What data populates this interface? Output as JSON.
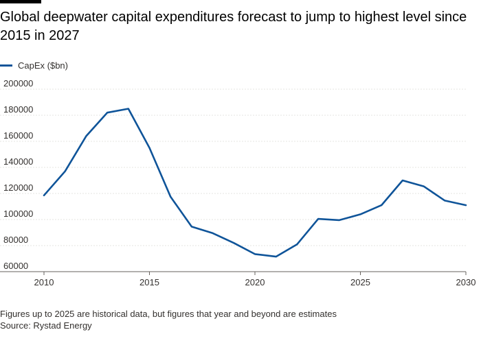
{
  "header": {
    "title": "Global deepwater capital expenditures forecast to jump to highest level since 2015 in 2027"
  },
  "footer": {
    "note": "Figures up to 2025 are historical data, but figures that year and beyond are estimates",
    "source": "Source: Rystad Energy"
  },
  "colors": {
    "series": "#0f5499",
    "grid": "#e6e4e1",
    "axis": "#66605c",
    "text": "#33302e"
  },
  "chart_data": {
    "type": "line",
    "title": "Global deepwater capital expenditures forecast to jump to highest level since 2015 in 2027",
    "xlabel": "",
    "ylabel": "",
    "xlim": [
      2010,
      2030
    ],
    "ylim": [
      60000,
      200000
    ],
    "x_ticks": [
      2010,
      2015,
      2020,
      2025,
      2030
    ],
    "y_ticks": [
      60000,
      80000,
      100000,
      120000,
      140000,
      160000,
      180000,
      200000
    ],
    "grid": true,
    "legend_position": "top-left",
    "series": [
      {
        "name": "CapEx ($bn)",
        "x": [
          2010,
          2011,
          2012,
          2013,
          2014,
          2015,
          2016,
          2017,
          2018,
          2019,
          2020,
          2021,
          2022,
          2023,
          2024,
          2025,
          2026,
          2027,
          2028,
          2029,
          2030
        ],
        "values": [
          118500,
          137000,
          164000,
          182000,
          185000,
          155000,
          117500,
          94500,
          89500,
          82000,
          73500,
          71500,
          81000,
          100500,
          99500,
          104000,
          111000,
          130000,
          125500,
          114500,
          111000
        ]
      }
    ]
  }
}
